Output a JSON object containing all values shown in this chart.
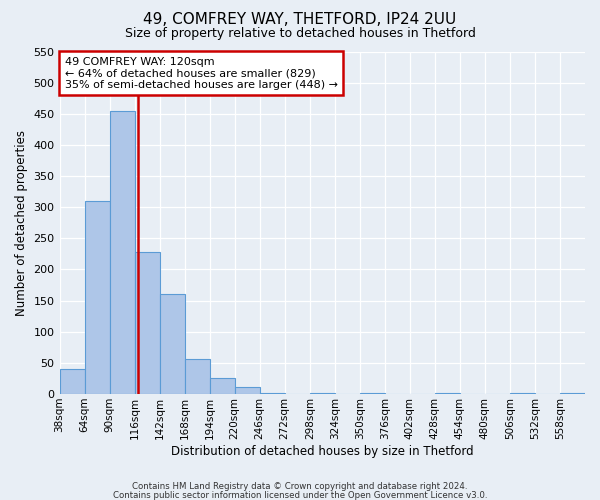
{
  "title": "49, COMFREY WAY, THETFORD, IP24 2UU",
  "subtitle": "Size of property relative to detached houses in Thetford",
  "xlabel": "Distribution of detached houses by size in Thetford",
  "ylabel": "Number of detached properties",
  "bin_labels": [
    "38sqm",
    "64sqm",
    "90sqm",
    "116sqm",
    "142sqm",
    "168sqm",
    "194sqm",
    "220sqm",
    "246sqm",
    "272sqm",
    "298sqm",
    "324sqm",
    "350sqm",
    "376sqm",
    "402sqm",
    "428sqm",
    "454sqm",
    "480sqm",
    "506sqm",
    "532sqm",
    "558sqm"
  ],
  "bin_edges": [
    38,
    64,
    90,
    116,
    142,
    168,
    194,
    220,
    246,
    272,
    298,
    324,
    350,
    376,
    402,
    428,
    454,
    480,
    506,
    532,
    558
  ],
  "bar_heights": [
    40,
    310,
    455,
    228,
    160,
    57,
    25,
    12,
    2,
    0,
    2,
    0,
    2,
    0,
    0,
    2,
    0,
    0,
    2,
    0,
    2
  ],
  "bar_color": "#aec6e8",
  "bar_edge_color": "#5b9bd5",
  "vline_x": 120,
  "vline_color": "#cc0000",
  "ylim": [
    0,
    550
  ],
  "yticks": [
    0,
    50,
    100,
    150,
    200,
    250,
    300,
    350,
    400,
    450,
    500,
    550
  ],
  "annotation_title": "49 COMFREY WAY: 120sqm",
  "annotation_line1": "← 64% of detached houses are smaller (829)",
  "annotation_line2": "35% of semi-detached houses are larger (448) →",
  "annotation_box_color": "#ffffff",
  "annotation_box_edge": "#cc0000",
  "bg_color": "#e8eef5",
  "grid_color": "#ffffff",
  "footer_line1": "Contains HM Land Registry data © Crown copyright and database right 2024.",
  "footer_line2": "Contains public sector information licensed under the Open Government Licence v3.0."
}
